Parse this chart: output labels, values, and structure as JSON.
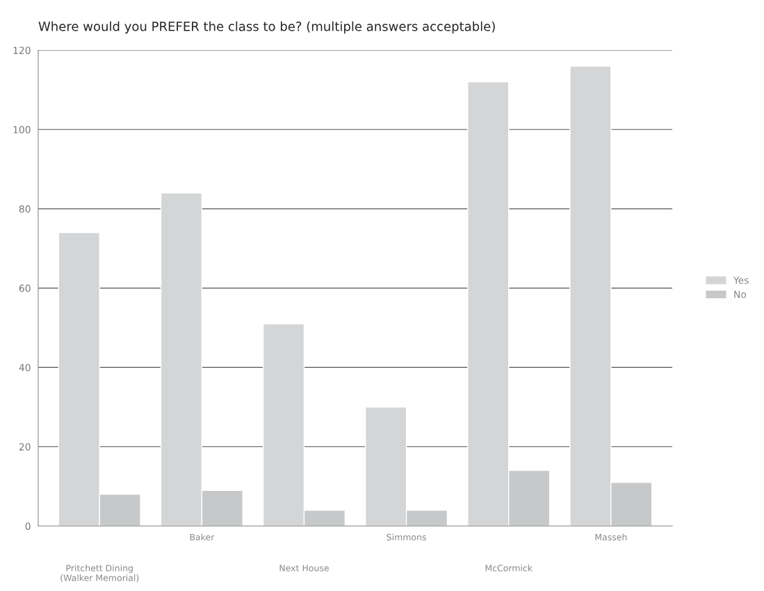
{
  "chart_data": {
    "type": "bar",
    "title": "Where would you PREFER the class to be? (multiple answers acceptable)",
    "categories": [
      "Pritchett Dining\n(Walker Memorial)",
      "Baker",
      "Next House",
      "Simmons",
      "McCormick",
      "Masseh"
    ],
    "series": [
      {
        "name": "Yes",
        "color": "#d3d5d6",
        "values": [
          74,
          84,
          51,
          30,
          112,
          116
        ]
      },
      {
        "name": "No",
        "color": "#c6c8c9",
        "values": [
          8,
          9,
          4,
          4,
          14,
          11
        ]
      }
    ],
    "ylim": [
      0,
      120
    ],
    "yticks": [
      0,
      20,
      40,
      60,
      80,
      100,
      120
    ],
    "grid": "y",
    "legend": "right"
  }
}
